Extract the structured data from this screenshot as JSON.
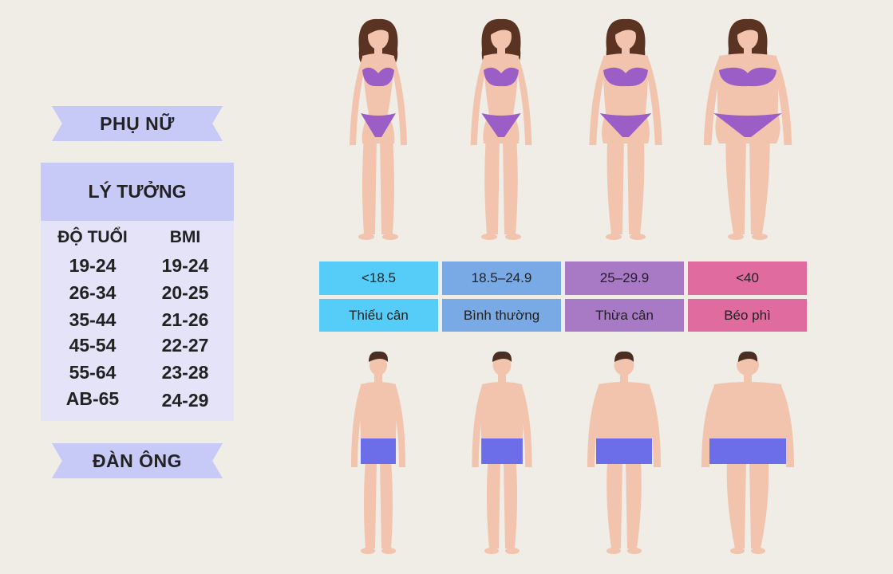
{
  "women_label": "PHỤ NỮ",
  "men_label": "ĐÀN ÔNG",
  "ideal_table": {
    "title": "LÝ TƯỞNG",
    "col_age": "ĐỘ TUỔI",
    "col_bmi": "BMI",
    "rows": [
      {
        "age": "19-24",
        "bmi": "19-24"
      },
      {
        "age": "26-34",
        "bmi": "20-25"
      },
      {
        "age": "35-44",
        "bmi": "21-26"
      },
      {
        "age": "45-54",
        "bmi": "22-27"
      },
      {
        "age": "55-64",
        "bmi": "23-28"
      },
      {
        "age": "AB-65",
        "bmi": "24-29"
      }
    ]
  },
  "categories": [
    {
      "range": "<18.5",
      "name": "Thiếu cân",
      "color": "#55cdf8"
    },
    {
      "range": "18.5–24.9",
      "name": "Bình thường",
      "color": "#7aaae6"
    },
    {
      "range": "25–29.9",
      "name": "Thừa cân",
      "color": "#a879c4"
    },
    {
      "range": "<40",
      "name": "Béo phì",
      "color": "#e06c9f"
    }
  ],
  "colors": {
    "skin": "#f2c3ad",
    "hair_female": "#5a3322",
    "hair_male": "#4a2e21",
    "bikini": "#9b5ec6",
    "shorts": "#6c6de8"
  }
}
